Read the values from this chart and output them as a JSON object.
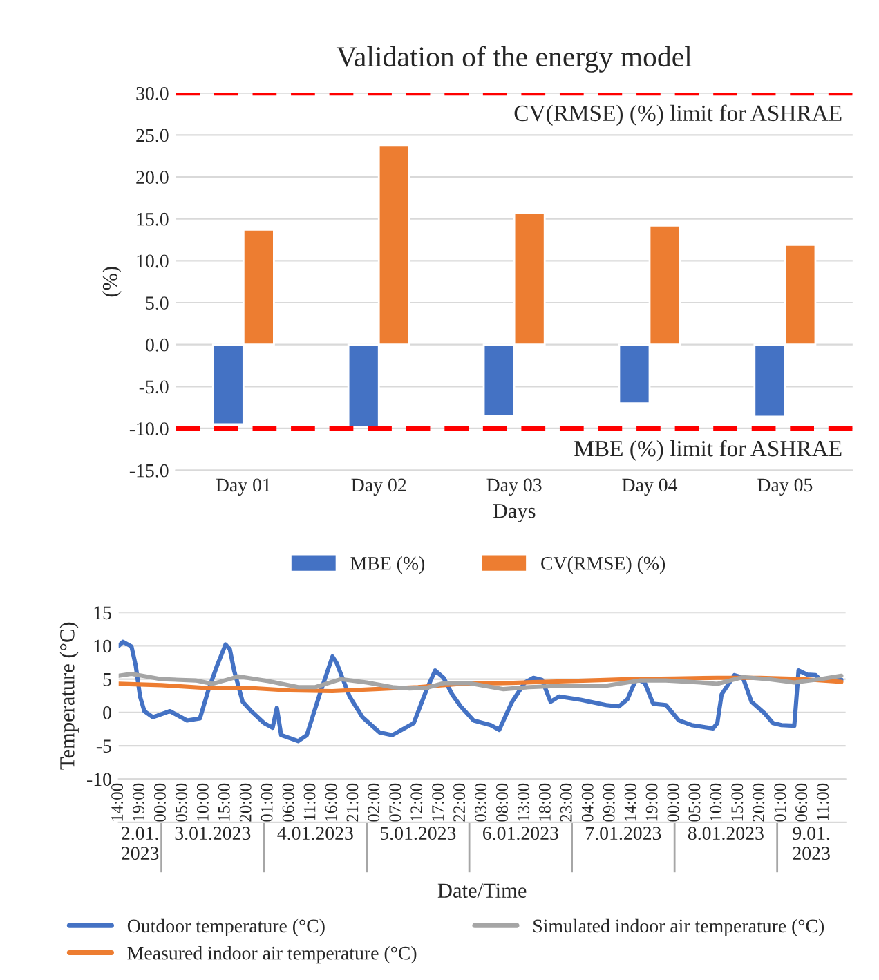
{
  "chart_data": [
    {
      "type": "bar",
      "title": "Validation of the energy model",
      "xlabel": "Days",
      "ylabel": "(%)",
      "categories": [
        "Day 01",
        "Day 02",
        "Day 03",
        "Day 04",
        "Day 05"
      ],
      "series": [
        {
          "name": "MBE (%)",
          "color": "#4472c4",
          "values": [
            -9.5,
            -9.8,
            -8.5,
            -7.0,
            -8.6
          ]
        },
        {
          "name": "CV(RMSE) (%)",
          "color": "#ed7d31",
          "values": [
            13.7,
            23.8,
            15.7,
            14.2,
            11.9
          ]
        }
      ],
      "ylim": [
        -15,
        30
      ],
      "yticks": [
        {
          "value": -15,
          "label": "-15.0"
        },
        {
          "value": -10,
          "label": "-10.0"
        },
        {
          "value": -5,
          "label": "-5.0"
        },
        {
          "value": 0,
          "label": "0.0"
        },
        {
          "value": 5,
          "label": "5.0"
        },
        {
          "value": 10,
          "label": "10.0"
        },
        {
          "value": 15,
          "label": "15.0"
        },
        {
          "value": 20,
          "label": "20.0"
        },
        {
          "value": 25,
          "label": "25.0"
        },
        {
          "value": 30,
          "label": "30.0"
        }
      ],
      "ref_lines": [
        {
          "axis": "y",
          "value": 30,
          "label": "CV(RMSE) (%) limit for ASHRAE",
          "color": "#ff0000",
          "line_style": "dashed"
        },
        {
          "axis": "y",
          "value": -10,
          "label": "MBE (%) limit for ASHRAE",
          "color": "#ff0000",
          "line_style": "dashed"
        }
      ],
      "grid": "y",
      "legend": "bottom"
    },
    {
      "type": "line",
      "xlabel": "Date/Time",
      "ylabel": "Temperature (°C)",
      "series": [
        {
          "name": "Outdoor temperature (°C)",
          "color": "#4472c4",
          "x": [
            "2023-01-02T14:00",
            "2023-01-02T15:00",
            "2023-01-02T17:00",
            "2023-01-02T18:00",
            "2023-01-02T19:00",
            "2023-01-02T20:00",
            "2023-01-02T22:00",
            "2023-01-02T23:00",
            "2023-01-03T02:00",
            "2023-01-03T04:00",
            "2023-01-03T06:00",
            "2023-01-03T09:00",
            "2023-01-03T11:00",
            "2023-01-03T13:00",
            "2023-01-03T15:00",
            "2023-01-03T16:00",
            "2023-01-03T17:00",
            "2023-01-03T19:00",
            "2023-01-03T21:00",
            "2023-01-04T00:00",
            "2023-01-04T02:00",
            "2023-01-04T03:00",
            "2023-01-04T04:00",
            "2023-01-04T08:00",
            "2023-01-04T10:00",
            "2023-01-04T13:00",
            "2023-01-04T16:00",
            "2023-01-04T17:00",
            "2023-01-04T20:00",
            "2023-01-04T23:00",
            "2023-01-05T03:00",
            "2023-01-05T06:00",
            "2023-01-05T11:00",
            "2023-01-05T14:00",
            "2023-01-05T16:00",
            "2023-01-05T18:00",
            "2023-01-05T20:00",
            "2023-01-05T22:00",
            "2023-01-06T01:00",
            "2023-01-06T05:00",
            "2023-01-06T07:00",
            "2023-01-06T10:00",
            "2023-01-06T13:00",
            "2023-01-06T15:00",
            "2023-01-06T17:00",
            "2023-01-06T19:00",
            "2023-01-06T21:00",
            "2023-01-07T02:00",
            "2023-01-07T08:00",
            "2023-01-07T11:00",
            "2023-01-07T13:00",
            "2023-01-07T15:00",
            "2023-01-07T17:00",
            "2023-01-07T19:00",
            "2023-01-07T22:00",
            "2023-01-08T01:00",
            "2023-01-08T04:00",
            "2023-01-08T09:00",
            "2023-01-08T10:00",
            "2023-01-08T11:00",
            "2023-01-08T14:00",
            "2023-01-08T16:00",
            "2023-01-08T18:00",
            "2023-01-08T21:00",
            "2023-01-08T23:00",
            "2023-01-09T01:00",
            "2023-01-09T04:00",
            "2023-01-09T05:00",
            "2023-01-09T07:00",
            "2023-01-09T09:00",
            "2023-01-09T10:00",
            "2023-01-09T12:00",
            "2023-01-09T13:00",
            "2023-01-09T15:00"
          ],
          "values": [
            10.0,
            10.6,
            9.9,
            7,
            2.4,
            0.2,
            -0.7,
            -0.5,
            0.2,
            -0.5,
            -1.2,
            -0.9,
            3.4,
            7,
            10.2,
            9.5,
            6.3,
            1.6,
            0.2,
            -1.6,
            -2.3,
            0.7,
            -3.4,
            -4.3,
            -3.4,
            2.7,
            8.4,
            7.4,
            2.4,
            -0.7,
            -3,
            -3.4,
            -1.6,
            3.4,
            6.3,
            5.2,
            2.7,
            0.9,
            -1.2,
            -1.9,
            -2.6,
            1.6,
            4.5,
            5.2,
            4.9,
            1.6,
            2.4,
            1.9,
            1.1,
            0.9,
            2,
            5,
            4.5,
            1.3,
            1.1,
            -1.2,
            -1.9,
            -2.4,
            -1.6,
            2.7,
            5.6,
            5.2,
            1.6,
            -0.1,
            -1.6,
            -1.9,
            -2,
            6.3,
            5.7,
            5.6,
            5,
            5,
            4.9,
            4.9
          ]
        },
        {
          "name": "Measured indoor air temperature (°C)",
          "color": "#ed7d31",
          "x": [
            "2023-01-02T14:00",
            "2023-01-03T00:00",
            "2023-01-03T10:00",
            "2023-01-03T20:00",
            "2023-01-04T06:00",
            "2023-01-04T16:00",
            "2023-01-05T02:00",
            "2023-01-05T12:00",
            "2023-01-05T22:00",
            "2023-01-06T08:00",
            "2023-01-06T18:00",
            "2023-01-07T04:00",
            "2023-01-07T14:00",
            "2023-01-08T00:00",
            "2023-01-08T10:00",
            "2023-01-08T20:00",
            "2023-01-09T06:00",
            "2023-01-09T15:00"
          ],
          "values": [
            4.3,
            4.1,
            3.7,
            3.7,
            3.3,
            3.2,
            3.5,
            3.8,
            4.3,
            4.4,
            4.6,
            4.8,
            5.0,
            5.1,
            5.2,
            5.2,
            5.0,
            4.6
          ]
        },
        {
          "name": "Simulated indoor air temperature (°C)",
          "color": "#a5a5a5",
          "x": [
            "2023-01-02T14:00",
            "2023-01-02T17:00",
            "2023-01-03T00:00",
            "2023-01-03T08:00",
            "2023-01-03T12:00",
            "2023-01-03T18:00",
            "2023-01-04T01:00",
            "2023-01-04T08:00",
            "2023-01-04T12:00",
            "2023-01-04T18:00",
            "2023-01-05T00:00",
            "2023-01-05T06:00",
            "2023-01-05T10:00",
            "2023-01-05T14:00",
            "2023-01-05T18:00",
            "2023-01-06T00:00",
            "2023-01-06T08:00",
            "2023-01-06T14:00",
            "2023-01-06T22:00",
            "2023-01-07T08:00",
            "2023-01-07T16:00",
            "2023-01-07T22:00",
            "2023-01-08T06:00",
            "2023-01-08T10:00",
            "2023-01-08T16:00",
            "2023-01-08T22:00",
            "2023-01-09T04:00",
            "2023-01-09T10:00",
            "2023-01-09T15:00"
          ],
          "values": [
            5.5,
            5.8,
            5.0,
            4.8,
            4.3,
            5.4,
            4.7,
            3.8,
            3.8,
            5.0,
            4.5,
            3.8,
            3.6,
            3.7,
            4.4,
            4.4,
            3.5,
            3.8,
            4.0,
            4.0,
            4.8,
            4.8,
            4.5,
            4.3,
            5.3,
            5.0,
            4.5,
            5.0,
            5.5
          ]
        }
      ],
      "xlim": [
        "2023-01-02T14:00",
        "2023-01-09T16:00"
      ],
      "xticks": [
        {
          "value": "2023-01-02T14:00",
          "label": "14:00"
        },
        {
          "value": "2023-01-02T19:00",
          "label": "19:00"
        },
        {
          "value": "2023-01-03T00:00",
          "label": "00:00"
        },
        {
          "value": "2023-01-03T05:00",
          "label": "05:00"
        },
        {
          "value": "2023-01-03T10:00",
          "label": "10:00"
        },
        {
          "value": "2023-01-03T15:00",
          "label": "15:00"
        },
        {
          "value": "2023-01-03T20:00",
          "label": "20:00"
        },
        {
          "value": "2023-01-04T01:00",
          "label": "01:00"
        },
        {
          "value": "2023-01-04T06:00",
          "label": "06:00"
        },
        {
          "value": "2023-01-04T11:00",
          "label": "11:00"
        },
        {
          "value": "2023-01-04T16:00",
          "label": "16:00"
        },
        {
          "value": "2023-01-04T21:00",
          "label": "21:00"
        },
        {
          "value": "2023-01-05T02:00",
          "label": "02:00"
        },
        {
          "value": "2023-01-05T07:00",
          "label": "07:00"
        },
        {
          "value": "2023-01-05T12:00",
          "label": "12:00"
        },
        {
          "value": "2023-01-05T17:00",
          "label": "17:00"
        },
        {
          "value": "2023-01-05T22:00",
          "label": "22:00"
        },
        {
          "value": "2023-01-06T03:00",
          "label": "03:00"
        },
        {
          "value": "2023-01-06T08:00",
          "label": "08:00"
        },
        {
          "value": "2023-01-06T13:00",
          "label": "13:00"
        },
        {
          "value": "2023-01-06T18:00",
          "label": "18:00"
        },
        {
          "value": "2023-01-06T23:00",
          "label": "23:00"
        },
        {
          "value": "2023-01-07T04:00",
          "label": "04:00"
        },
        {
          "value": "2023-01-07T09:00",
          "label": "09:00"
        },
        {
          "value": "2023-01-07T14:00",
          "label": "14:00"
        },
        {
          "value": "2023-01-07T19:00",
          "label": "19:00"
        },
        {
          "value": "2023-01-08T00:00",
          "label": "00:00"
        },
        {
          "value": "2023-01-08T05:00",
          "label": "05:00"
        },
        {
          "value": "2023-01-08T10:00",
          "label": "10:00"
        },
        {
          "value": "2023-01-08T15:00",
          "label": "15:00"
        },
        {
          "value": "2023-01-08T20:00",
          "label": "20:00"
        },
        {
          "value": "2023-01-09T01:00",
          "label": "01:00"
        },
        {
          "value": "2023-01-09T06:00",
          "label": "06:00"
        },
        {
          "value": "2023-01-09T11:00",
          "label": "11:00"
        }
      ],
      "x2lim": [
        "2023-01-02T14:00",
        "2023-01-09T16:00"
      ],
      "x2ticks": [
        {
          "value": "2023-01-02T19:00",
          "label": "2.01.2023"
        },
        {
          "value": "2023-01-03T12:00",
          "label": "3.01.2023"
        },
        {
          "value": "2023-01-04T12:00",
          "label": "4.01.2023"
        },
        {
          "value": "2023-01-05T12:00",
          "label": "5.01.2023"
        },
        {
          "value": "2023-01-06T12:00",
          "label": "6.01.2023"
        },
        {
          "value": "2023-01-07T12:00",
          "label": "7.01.2023"
        },
        {
          "value": "2023-01-08T12:00",
          "label": "8.01.2023"
        },
        {
          "value": "2023-01-09T08:00",
          "label": "9.01.2023"
        }
      ],
      "ylim": [
        -10,
        15
      ],
      "yticks": [
        -10,
        -5,
        0,
        5,
        10,
        15
      ],
      "grid": "y",
      "legend": "bottom"
    }
  ]
}
